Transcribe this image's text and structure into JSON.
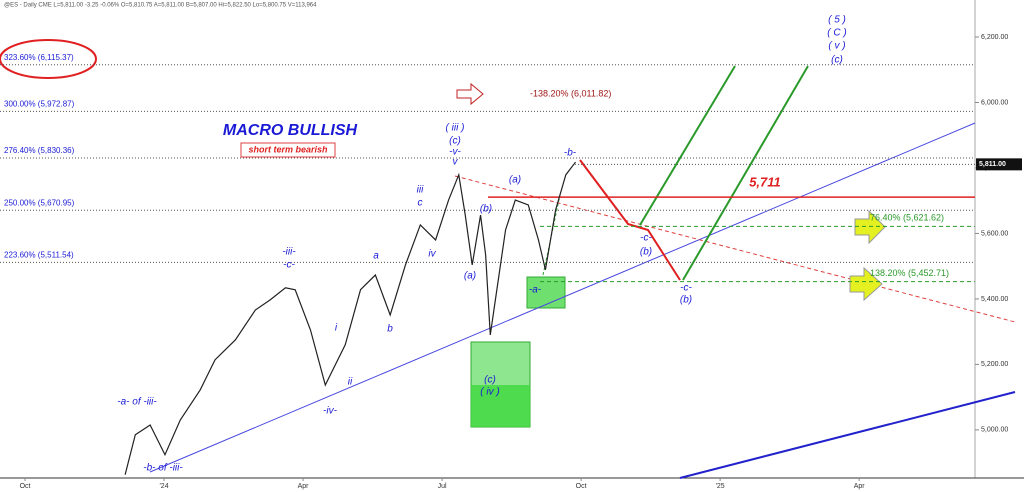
{
  "chart_data": {
    "type": "line",
    "header": "@ES - Daily  CME  L=5,811.00  -3.25  -0.06%  O=5,810.75  A=5,811.00  B=5,807.00  Hi=5,822.50  Lo=5,800.75  V=113,964",
    "x": [
      2.16,
      2.38,
      2.7,
      3.02,
      3.35,
      3.78,
      4.1,
      4.54,
      4.97,
      5.29,
      5.62,
      5.83,
      6.16,
      6.48,
      6.91,
      7.24,
      7.56,
      7.88,
      8.21,
      8.53,
      8.86,
      9.14,
      9.36,
      9.5,
      9.65,
      9.83,
      9.94,
      10.04,
      10.15,
      10.37,
      10.58,
      10.86,
      11.08,
      11.23,
      11.45,
      11.67,
      11.88
    ],
    "values": [
      4863,
      4985,
      5015,
      4924,
      5030,
      5122,
      5214,
      5275,
      5366,
      5397,
      5434,
      5428,
      5305,
      5137,
      5260,
      5428,
      5473,
      5351,
      5504,
      5626,
      5580,
      5702,
      5779,
      5656,
      5504,
      5656,
      5534,
      5290,
      5397,
      5611,
      5702,
      5687,
      5580,
      5489,
      5672,
      5779,
      5818
    ],
    "color": "#222222",
    "xlim": [
      -0.54,
      20.5
    ],
    "ylim": [
      4853,
      6313
    ],
    "xticks": [
      {
        "value": 0,
        "label": "Oct"
      },
      {
        "value": 3,
        "label": "'24"
      },
      {
        "value": 6,
        "label": "Apr"
      },
      {
        "value": 9,
        "label": "Jul"
      },
      {
        "value": 12,
        "label": "Oct"
      },
      {
        "value": 15,
        "label": "'25"
      },
      {
        "value": 18,
        "label": "Apr"
      }
    ],
    "yticks": [
      {
        "value": 5000,
        "label": "5,000.00"
      },
      {
        "value": 5200,
        "label": "5,200.00"
      },
      {
        "value": 5400,
        "label": "5,400.00"
      },
      {
        "value": 5600,
        "label": "5,600.00"
      },
      {
        "value": 5800,
        "label": "5,800.00"
      },
      {
        "value": 6000,
        "label": "6,000.00"
      },
      {
        "value": 6200,
        "label": "6,200.00"
      }
    ],
    "last_price": {
      "value": 5811,
      "label": "5,811.00"
    },
    "fib_levels": [
      {
        "value": 6115.37,
        "label": "323.60% (6,115.37)"
      },
      {
        "value": 5972.87,
        "label": "300.00% (5,972.87)"
      },
      {
        "value": 5830.36,
        "label": "276.40% (5,830.36)"
      },
      {
        "value": 5670.95,
        "label": "250.00% (5,670.95)"
      },
      {
        "value": 5511.54,
        "label": "223.60% (5,511.54)"
      }
    ],
    "targets": [
      {
        "value": 5621.62,
        "label": "76.40% (5,621.62)"
      },
      {
        "value": 5452.71,
        "label": "138.20% (5,452.71)"
      }
    ],
    "resistance": {
      "value": 5711,
      "label": "5,711"
    },
    "extension_label": "-138.20% (6,011.82)",
    "title": "MACRO BULLISH",
    "subtitle": "short term bearish",
    "annotations": [
      "( 5 )",
      "( C )",
      "( v )",
      "(c)",
      "( iii )",
      "(c)",
      "-v-",
      "v",
      "-b-",
      "(a)",
      "(b)",
      "(a)",
      "(c)",
      "( iv )",
      "iii",
      "c",
      "iv",
      "a",
      "i",
      "b",
      "ii",
      "-iii-",
      "-c-",
      "-iv-",
      "-a- of -iii-",
      "-b- of -iii-",
      "-a-",
      "-c-",
      "(b)",
      "-c-",
      "(b)"
    ]
  }
}
